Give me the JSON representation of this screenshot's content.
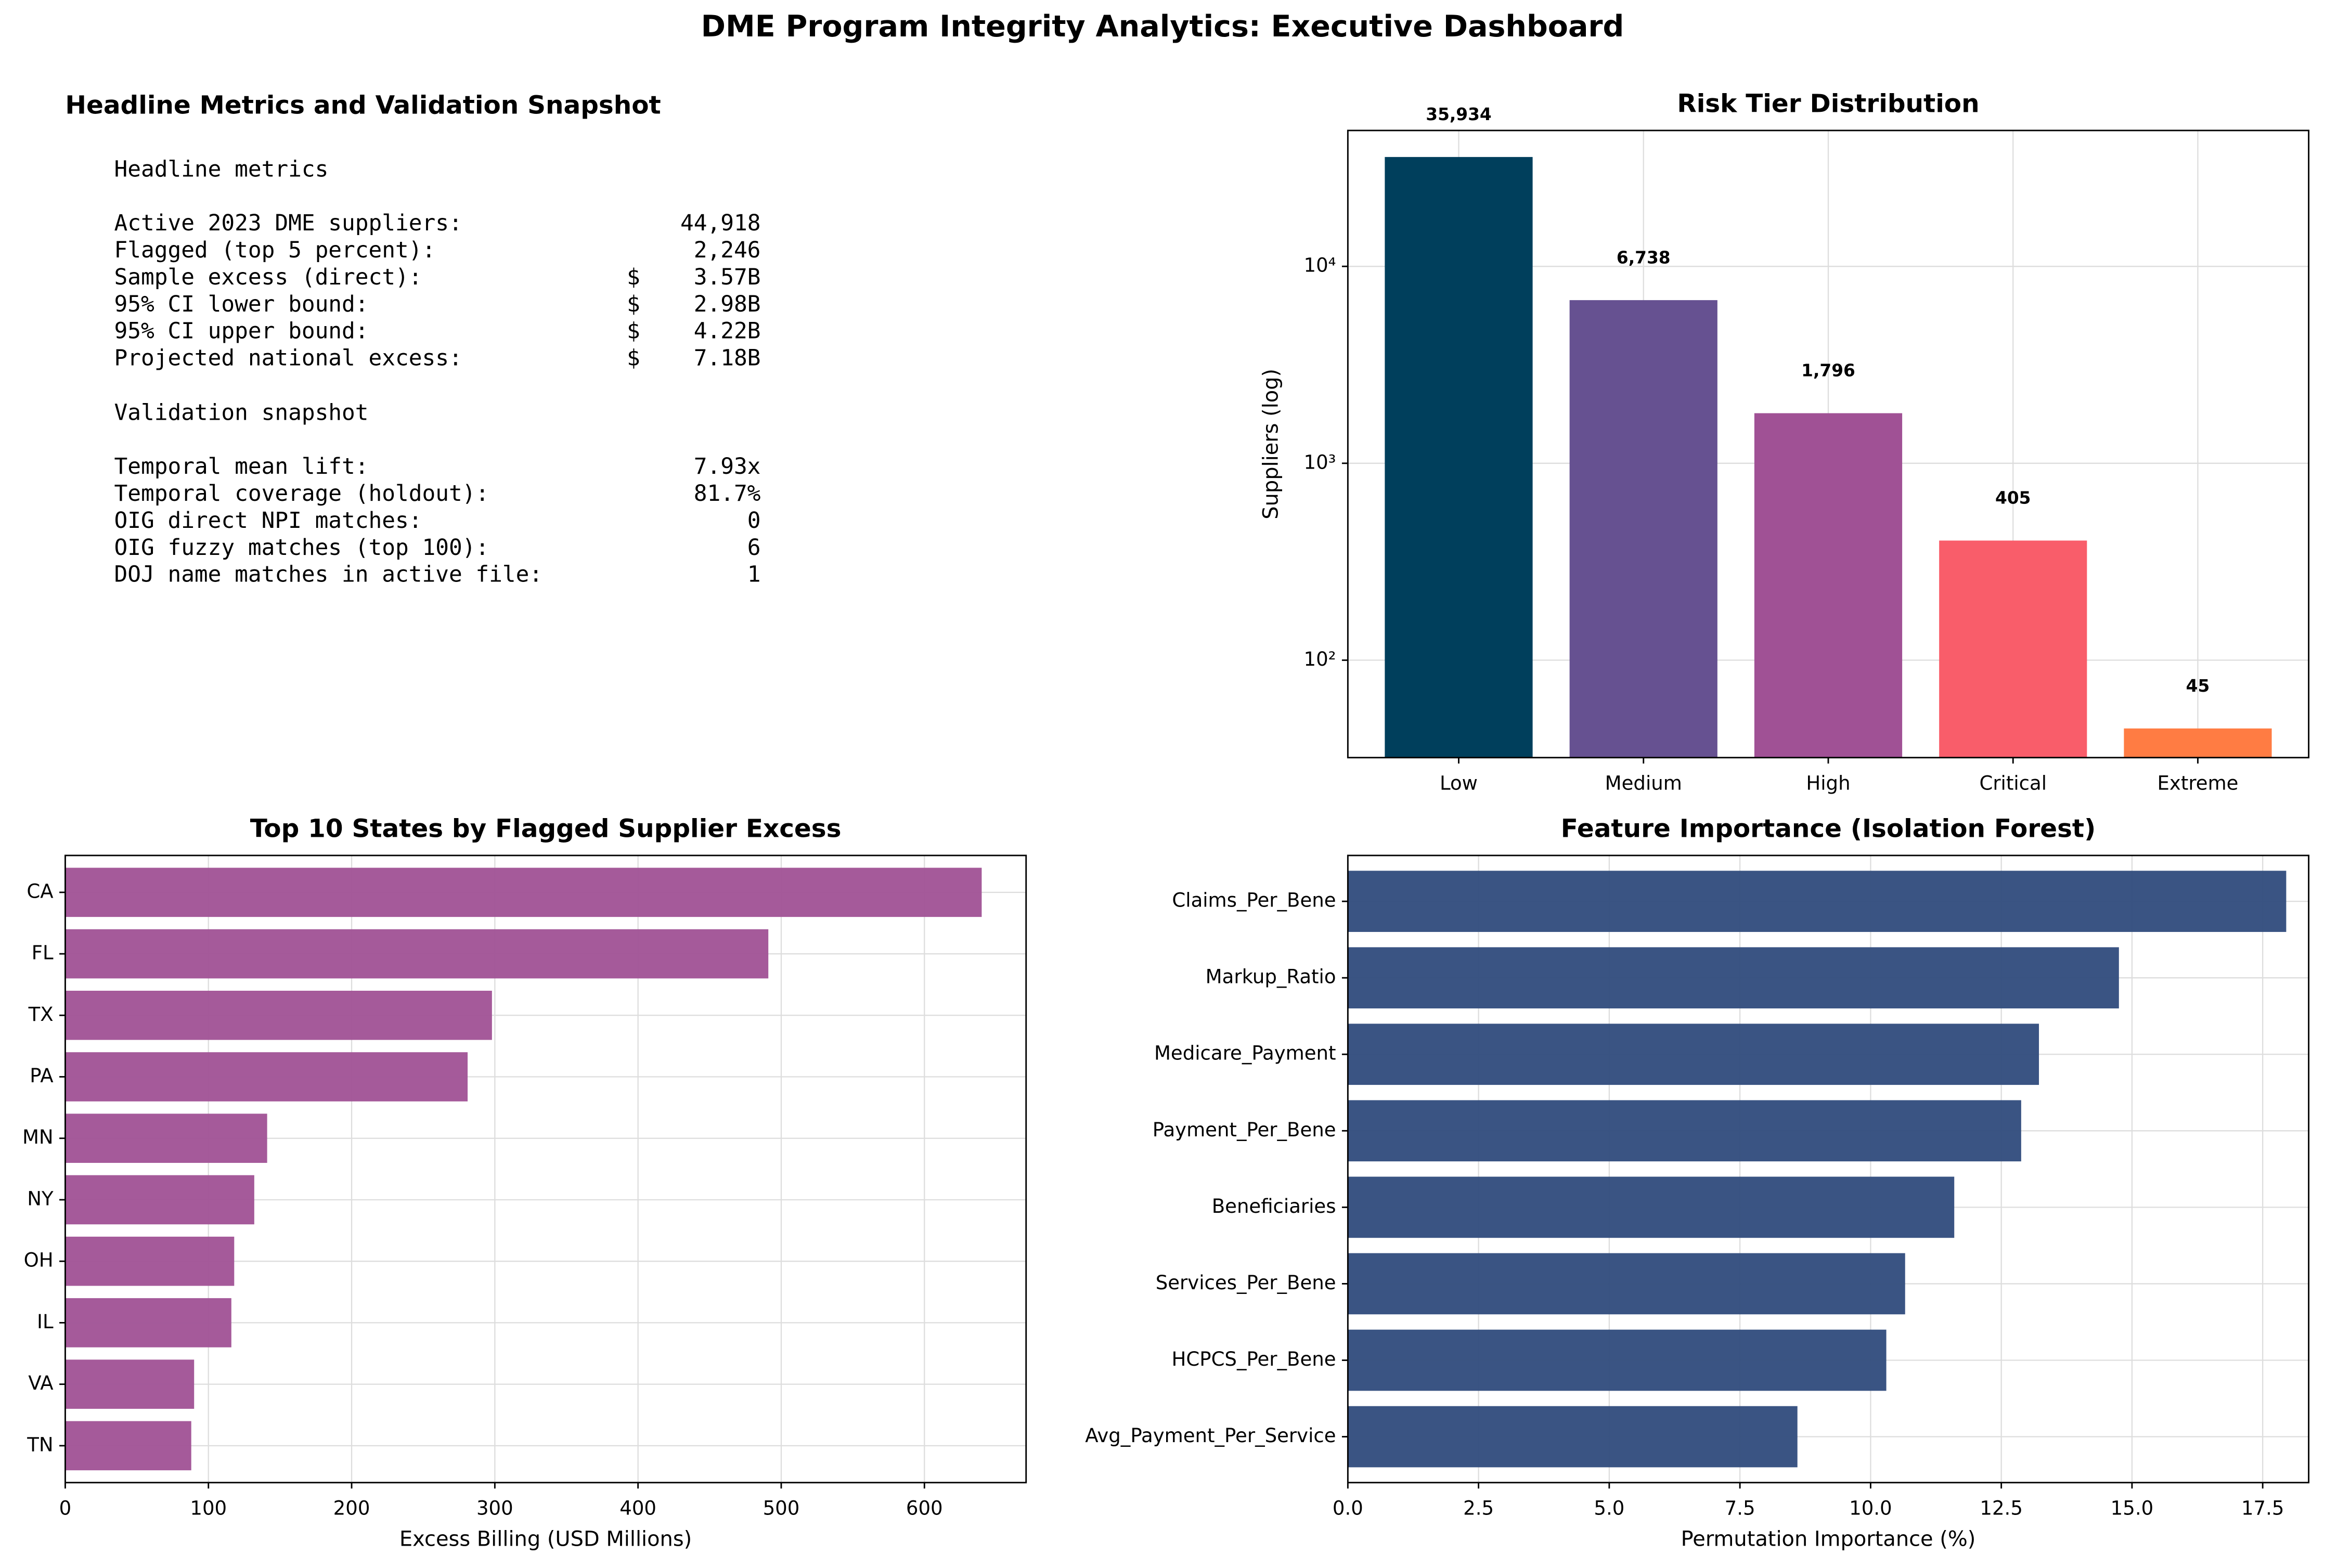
{
  "title": "DME Program Integrity Analytics: Executive Dashboard",
  "metrics_panel": {
    "title": "Headline Metrics and Validation Snapshot",
    "sections": [
      {
        "heading": "Headline metrics",
        "rows": [
          {
            "label": "Active 2023 DME suppliers:",
            "value": "44,918"
          },
          {
            "label": "Flagged (top 5 percent):",
            "value": "2,246"
          },
          {
            "label": "Sample excess (direct):",
            "value": "$    3.57B"
          },
          {
            "label": "95% CI lower bound:",
            "value": "$    2.98B"
          },
          {
            "label": "95% CI upper bound:",
            "value": "$    4.22B"
          },
          {
            "label": "Projected national excess:",
            "value": "$    7.18B"
          }
        ]
      },
      {
        "heading": "Validation snapshot",
        "rows": [
          {
            "label": "Temporal mean lift:",
            "value": "7.93x"
          },
          {
            "label": "Temporal coverage (holdout):",
            "value": "81.7%"
          },
          {
            "label": "OIG direct NPI matches:",
            "value": "0"
          },
          {
            "label": "OIG fuzzy matches (top 100):",
            "value": "6"
          },
          {
            "label": "DOJ name matches in active file:",
            "value": "1"
          }
        ]
      }
    ]
  },
  "chart_data": [
    {
      "type": "bar",
      "title": "Risk Tier Distribution",
      "ylabel": "Suppliers (log)",
      "categories": [
        "Low",
        "Medium",
        "High",
        "Critical",
        "Extreme"
      ],
      "values": [
        35934,
        6738,
        1796,
        405,
        45
      ],
      "value_labels": [
        "35,934",
        "6,738",
        "1,796",
        "405",
        "45"
      ],
      "colors": [
        "#003f5c",
        "#665191",
        "#a05195",
        "#f95d6a",
        "#ff7c43"
      ],
      "yscale": "log",
      "ylim": [
        32,
        49000
      ],
      "yticks": [
        {
          "value": 100,
          "label": "10²"
        },
        {
          "value": 1000,
          "label": "10³"
        },
        {
          "value": 10000,
          "label": "10⁴"
        }
      ],
      "grid": true
    },
    {
      "type": "barh",
      "title": "Top 10 States by Flagged Supplier Excess",
      "xlabel": "Excess Billing (USD Millions)",
      "categories": [
        "CA",
        "FL",
        "TX",
        "PA",
        "MN",
        "NY",
        "OH",
        "IL",
        "VA",
        "TN"
      ],
      "values": [
        640,
        491,
        298,
        281,
        141,
        132,
        118,
        116,
        90,
        88
      ],
      "color": "#a05195",
      "xlim": [
        0,
        671
      ],
      "xticks": [
        0,
        100,
        200,
        300,
        400,
        500,
        600
      ],
      "grid": true
    },
    {
      "type": "barh",
      "title": "Feature Importance (Isolation Forest)",
      "xlabel": "Permutation Importance (%)",
      "categories": [
        "Claims_Per_Bene",
        "Markup_Ratio",
        "Medicare_Payment",
        "Payment_Per_Bene",
        "Beneficiaries",
        "Services_Per_Bene",
        "HCPCS_Per_Bene",
        "Avg_Payment_Per_Service"
      ],
      "values": [
        17.95,
        14.75,
        13.22,
        12.88,
        11.6,
        10.66,
        10.3,
        8.6
      ],
      "color": "#2f4b7c",
      "xlim": [
        0,
        18.38
      ],
      "xticks": [
        {
          "value": 0,
          "label": "0.0"
        },
        2.5,
        {
          "value": 5,
          "label": "5.0"
        },
        7.5,
        {
          "value": 10,
          "label": "10.0"
        },
        12.5,
        {
          "value": 15,
          "label": "15.0"
        },
        17.5
      ],
      "grid": true
    }
  ]
}
